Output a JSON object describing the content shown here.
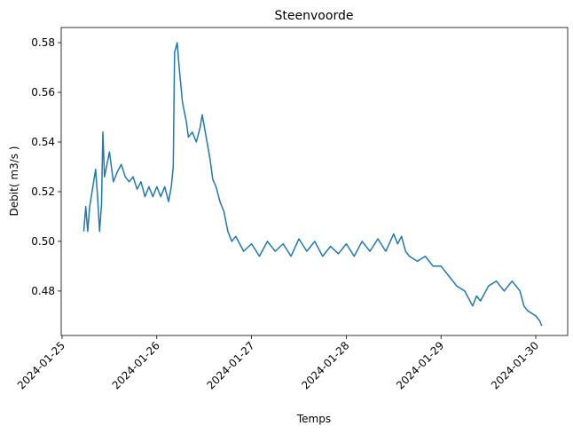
{
  "chart_data": {
    "type": "line",
    "title": "Steenvoorde",
    "x_label": "Temps",
    "y_label": "Debit( m3/s )",
    "xlim": [
      "2024-01-24T23:47",
      "2024-01-30T08:05"
    ],
    "xticks": [
      "2024-01-25",
      "2024-01-26",
      "2024-01-27",
      "2024-01-28",
      "2024-01-29",
      "2024-01-30"
    ],
    "ylim": [
      0.4621,
      0.5861
    ],
    "yticks": [
      0.48,
      {
        "value": 0.5,
        "label": "0.50"
      },
      0.52,
      0.54,
      0.56,
      0.58
    ],
    "grid": false,
    "series": [
      {
        "name": "Debit",
        "color": "#1f77b4",
        "x": [
          "2024-01-25T05:30",
          "2024-01-25T06:00",
          "2024-01-25T06:30",
          "2024-01-25T07:00",
          "2024-01-25T08:00",
          "2024-01-25T08:30",
          "2024-01-25T09:00",
          "2024-01-25T09:30",
          "2024-01-25T10:00",
          "2024-01-25T10:20",
          "2024-01-25T10:45",
          "2024-01-25T11:30",
          "2024-01-25T12:00",
          "2024-01-25T13:00",
          "2024-01-25T14:00",
          "2024-01-25T15:00",
          "2024-01-25T16:00",
          "2024-01-25T17:00",
          "2024-01-25T18:00",
          "2024-01-25T19:00",
          "2024-01-25T20:00",
          "2024-01-25T21:00",
          "2024-01-25T22:00",
          "2024-01-25T23:00",
          "2024-01-26T00:00",
          "2024-01-26T01:00",
          "2024-01-26T02:00",
          "2024-01-26T03:00",
          "2024-01-26T03:40",
          "2024-01-26T04:10",
          "2024-01-26T04:30",
          "2024-01-26T05:10",
          "2024-01-26T05:40",
          "2024-01-26T06:30",
          "2024-01-26T07:30",
          "2024-01-26T08:00",
          "2024-01-26T09:00",
          "2024-01-26T10:00",
          "2024-01-26T11:00",
          "2024-01-26T11:30",
          "2024-01-26T12:30",
          "2024-01-26T13:30",
          "2024-01-26T14:10",
          "2024-01-26T15:00",
          "2024-01-26T16:00",
          "2024-01-26T17:00",
          "2024-01-26T18:00",
          "2024-01-26T19:00",
          "2024-01-26T20:00",
          "2024-01-26T22:00",
          "2024-01-27T00:00",
          "2024-01-27T02:00",
          "2024-01-27T04:00",
          "2024-01-27T06:00",
          "2024-01-27T08:00",
          "2024-01-27T10:00",
          "2024-01-27T12:00",
          "2024-01-27T14:00",
          "2024-01-27T16:00",
          "2024-01-27T18:00",
          "2024-01-27T20:00",
          "2024-01-27T22:00",
          "2024-01-28T00:00",
          "2024-01-28T02:00",
          "2024-01-28T04:00",
          "2024-01-28T06:00",
          "2024-01-28T08:00",
          "2024-01-28T10:00",
          "2024-01-28T12:00",
          "2024-01-28T13:00",
          "2024-01-28T14:00",
          "2024-01-28T15:00",
          "2024-01-28T16:00",
          "2024-01-28T18:00",
          "2024-01-28T20:00",
          "2024-01-28T22:00",
          "2024-01-29T00:00",
          "2024-01-29T02:00",
          "2024-01-29T04:00",
          "2024-01-29T06:00",
          "2024-01-29T08:00",
          "2024-01-29T09:00",
          "2024-01-29T10:00",
          "2024-01-29T12:00",
          "2024-01-29T14:00",
          "2024-01-29T16:00",
          "2024-01-29T18:00",
          "2024-01-29T20:00",
          "2024-01-29T21:00",
          "2024-01-29T22:00",
          "2024-01-30T00:00",
          "2024-01-30T01:00",
          "2024-01-30T01:30"
        ],
        "values": [
          0.504,
          0.514,
          0.504,
          0.514,
          0.524,
          0.529,
          0.518,
          0.504,
          0.515,
          0.544,
          0.526,
          0.532,
          0.536,
          0.524,
          0.528,
          0.531,
          0.526,
          0.524,
          0.526,
          0.521,
          0.524,
          0.518,
          0.522,
          0.518,
          0.522,
          0.518,
          0.522,
          0.516,
          0.522,
          0.53,
          0.576,
          0.58,
          0.57,
          0.556,
          0.548,
          0.542,
          0.544,
          0.54,
          0.546,
          0.551,
          0.542,
          0.533,
          0.525,
          0.522,
          0.516,
          0.512,
          0.504,
          0.5,
          0.502,
          0.496,
          0.499,
          0.494,
          0.5,
          0.496,
          0.499,
          0.494,
          0.501,
          0.496,
          0.5,
          0.494,
          0.498,
          0.495,
          0.499,
          0.494,
          0.5,
          0.496,
          0.501,
          0.496,
          0.503,
          0.499,
          0.502,
          0.496,
          0.494,
          0.492,
          0.494,
          0.49,
          0.49,
          0.486,
          0.482,
          0.48,
          0.474,
          0.478,
          0.476,
          0.482,
          0.484,
          0.48,
          0.484,
          0.48,
          0.474,
          0.472,
          0.47,
          0.468,
          0.466
        ]
      }
    ]
  }
}
